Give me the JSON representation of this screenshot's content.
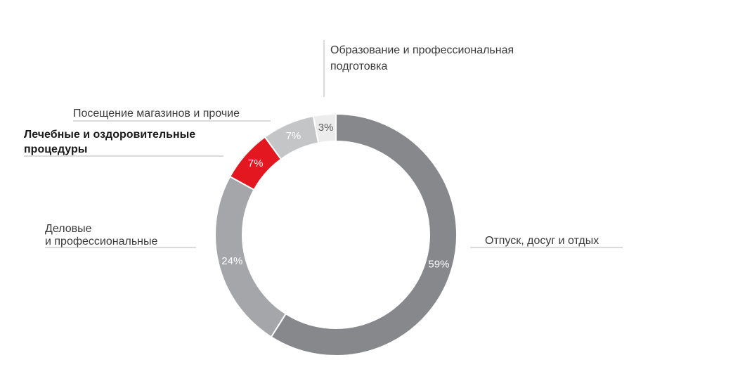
{
  "chart_data": {
    "type": "pie",
    "donut": true,
    "categories": [
      "Отпуск, досуг и отдых",
      "Деловые и профессиональные",
      "Лечебные и оздоровительные процедуры",
      "Посещение магазинов и прочие",
      "Образование и профессиональная подготовка"
    ],
    "values": [
      59,
      24,
      7,
      7,
      3
    ],
    "value_labels": [
      "59%",
      "24%",
      "7%",
      "7%",
      "3%"
    ],
    "colors": [
      "#87888c",
      "#a5a6a9",
      "#e3171f",
      "#c4c5c7",
      "#ececec"
    ],
    "highlighted": "Лечебные и оздоровительные процедуры",
    "label_lines": {
      "leisure": [
        "Отпуск, досуг и отдых"
      ],
      "business": [
        "Деловые",
        "и профессиональные"
      ],
      "medical": [
        "Лечебные и оздоровительные",
        "процедуры"
      ],
      "shopping": [
        "Посещение магазинов и прочие"
      ],
      "education": [
        "Образование и профессиональная",
        "подготовка"
      ]
    }
  }
}
